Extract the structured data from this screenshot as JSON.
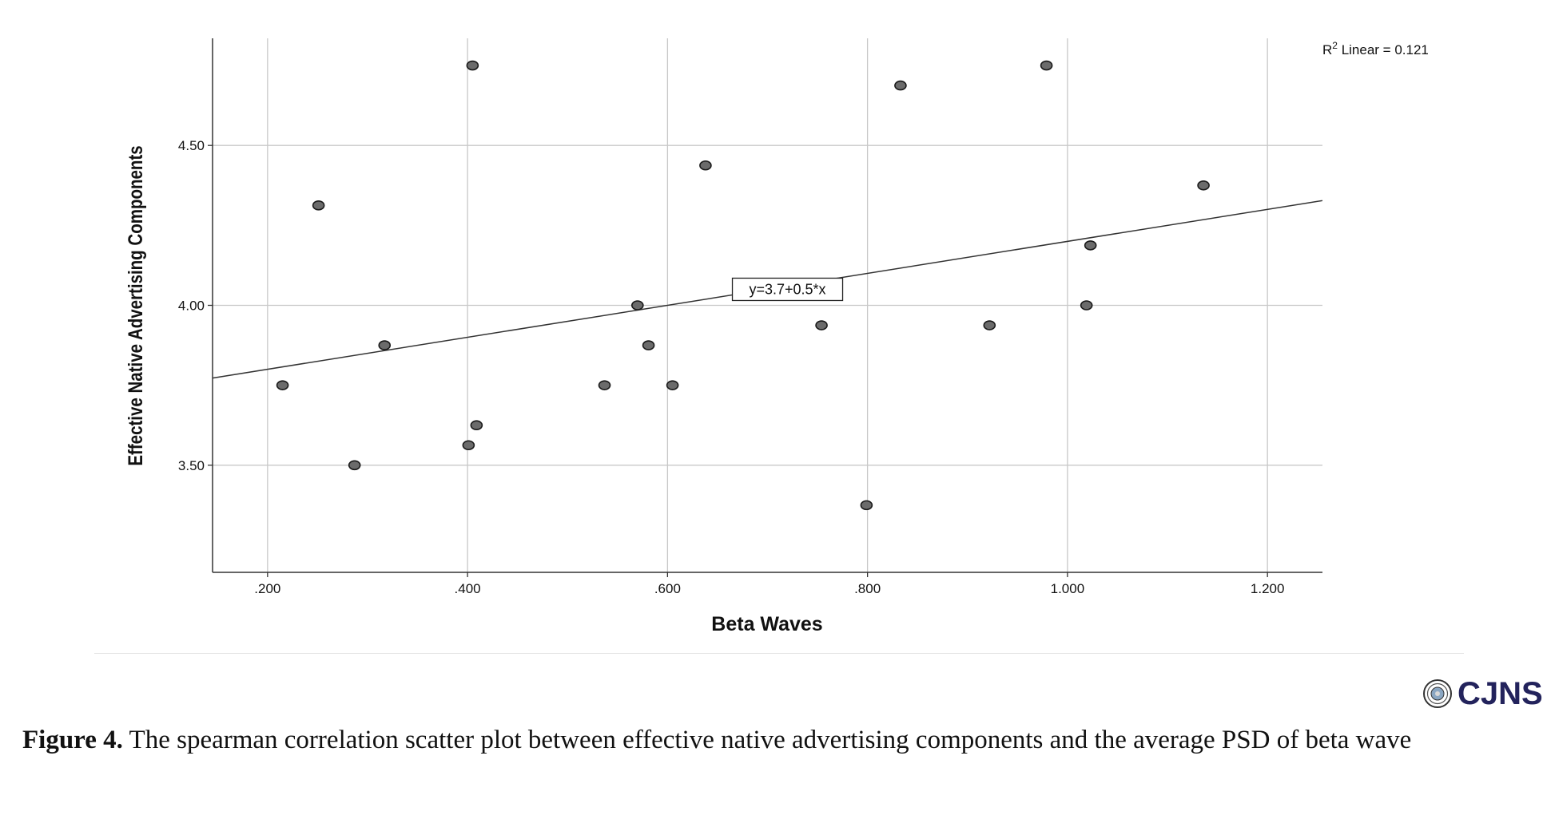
{
  "chart_data": {
    "type": "scatter",
    "xlabel": "Beta Waves",
    "ylabel": "Effective Native Advertising Components",
    "xlim": [
      0.145,
      1.255
    ],
    "ylim": [
      3.165,
      4.835
    ],
    "x_ticks": [
      ".200",
      ".400",
      ".600",
      ".800",
      "1.000",
      "1.200"
    ],
    "x_tick_values": [
      0.2,
      0.4,
      0.6,
      0.8,
      1.0,
      1.2
    ],
    "y_ticks": [
      "3.50",
      "4.00",
      "4.50"
    ],
    "y_tick_values": [
      3.5,
      4.0,
      4.5
    ],
    "grid": true,
    "points": [
      {
        "x": 0.215,
        "y": 3.75
      },
      {
        "x": 0.251,
        "y": 4.3125
      },
      {
        "x": 0.287,
        "y": 3.5
      },
      {
        "x": 0.317,
        "y": 3.875
      },
      {
        "x": 0.401,
        "y": 3.5625
      },
      {
        "x": 0.405,
        "y": 4.75
      },
      {
        "x": 0.409,
        "y": 3.625
      },
      {
        "x": 0.537,
        "y": 3.75
      },
      {
        "x": 0.57,
        "y": 4.0
      },
      {
        "x": 0.581,
        "y": 3.875
      },
      {
        "x": 0.605,
        "y": 3.75
      },
      {
        "x": 0.638,
        "y": 4.4375
      },
      {
        "x": 0.754,
        "y": 3.9375
      },
      {
        "x": 0.799,
        "y": 3.375
      },
      {
        "x": 0.833,
        "y": 4.6875
      },
      {
        "x": 0.922,
        "y": 3.9375
      },
      {
        "x": 0.979,
        "y": 4.75
      },
      {
        "x": 1.019,
        "y": 4.0
      },
      {
        "x": 1.023,
        "y": 4.1875
      },
      {
        "x": 1.136,
        "y": 4.375
      }
    ],
    "fit_line": {
      "intercept": 3.7,
      "slope": 0.5,
      "label": "y=3.7+0.5*x",
      "label_anchor": {
        "x": 0.72,
        "y": 4.05
      }
    },
    "r2_label": {
      "prefix": "R",
      "sup": "2",
      "text": " Linear = 0.121"
    },
    "colors": {
      "point_fill": "#6b6b6b",
      "point_stroke": "#1a1a1a",
      "grid": "#c8c8c8",
      "axis": "#333333",
      "line": "#333333"
    }
  },
  "logo": {
    "text": "CJNS"
  },
  "caption": {
    "label": "Figure 4.",
    "text": " The spearman correlation scatter plot between effective native advertising components and the average PSD of beta wave"
  }
}
